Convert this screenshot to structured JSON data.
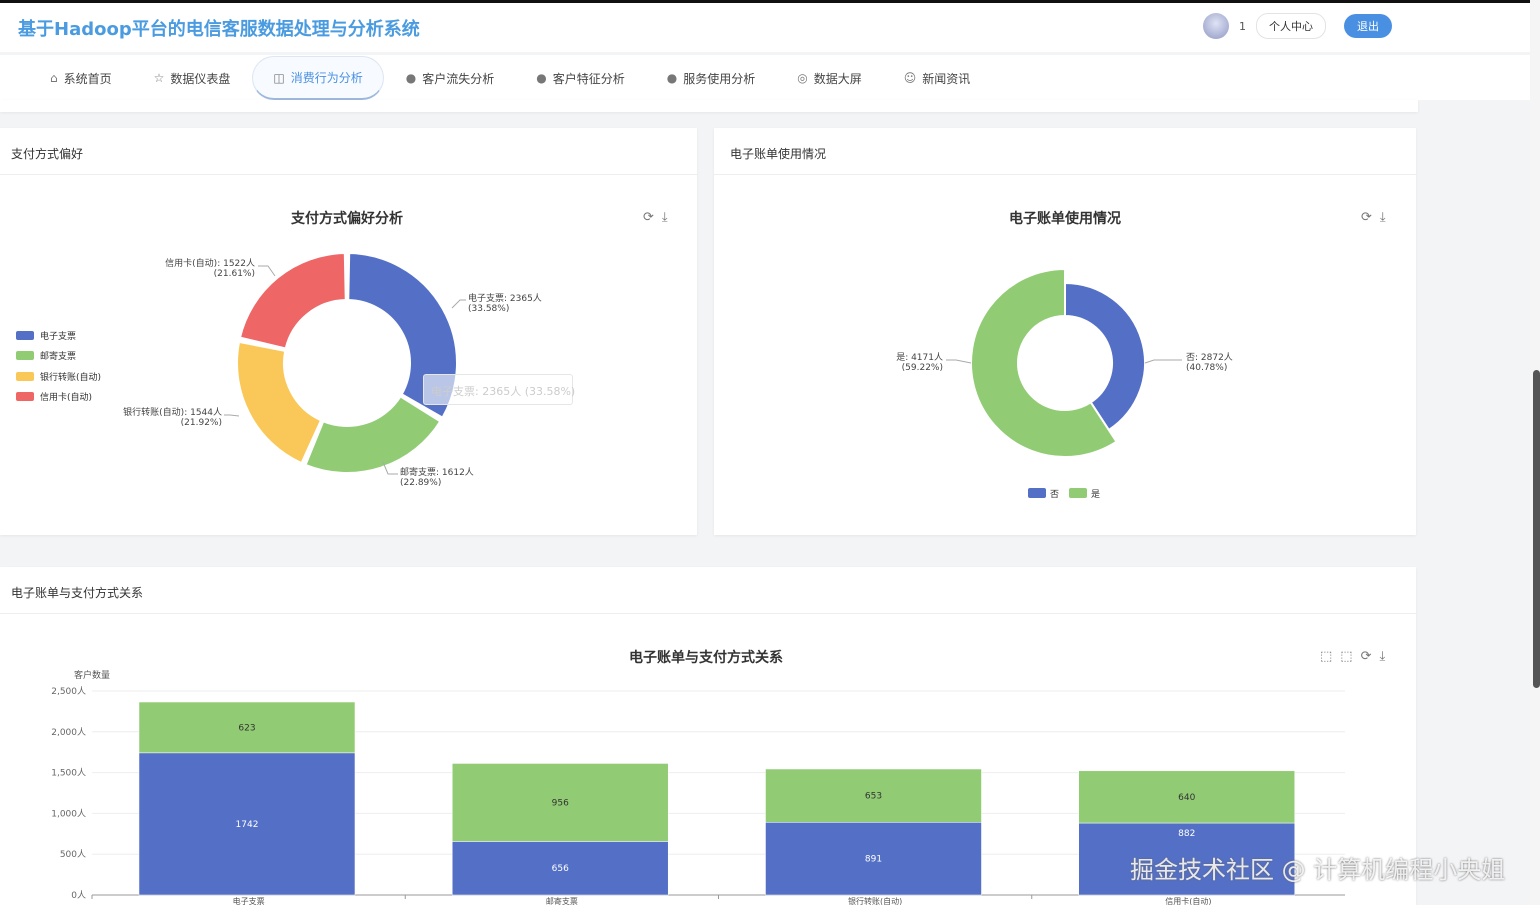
{
  "header": {
    "title": "基于Hadoop平台的电信客服数据处理与分析系统",
    "user": "1",
    "profile": "个人中心",
    "logout": "退出"
  },
  "nav": [
    {
      "label": "系统首页",
      "icon": "home-icon"
    },
    {
      "label": "数据仪表盘",
      "icon": "star-icon"
    },
    {
      "label": "消费行为分析",
      "icon": "bag-icon",
      "active": true
    },
    {
      "label": "客户流失分析",
      "icon": "info-icon"
    },
    {
      "label": "客户特征分析",
      "icon": "question-icon"
    },
    {
      "label": "服务使用分析",
      "icon": "info-icon"
    },
    {
      "label": "数据大屏",
      "icon": "target-icon"
    },
    {
      "label": "新闻资讯",
      "icon": "smile-icon"
    }
  ],
  "cards": {
    "payment": "支付方式偏好",
    "ebill": "电子账单使用情况",
    "relation": "电子账单与支付方式关系"
  },
  "tooltip": "电子支票: 2365人 (33.58%)",
  "watermark": "掘金技术社区 @ 计算机编程小央姐",
  "colors": {
    "blue": "#5470c6",
    "green": "#91cc75",
    "yellow": "#fac858",
    "red": "#ee6666",
    "accent": "#4a90e2"
  },
  "chart_data": [
    {
      "type": "pie",
      "title": "支付方式偏好分析",
      "legend_placement": "left",
      "series": [
        {
          "name": "电子支票",
          "value": 2365,
          "label": "电子支票: 2365人",
          "pct": "(33.58%)"
        },
        {
          "name": "邮寄支票",
          "value": 1612,
          "label": "邮寄支票: 1612人",
          "pct": "(22.89%)"
        },
        {
          "name": "银行转账(自动)",
          "value": 1544,
          "label": "银行转账(自动): 1544人",
          "pct": "(21.92%)"
        },
        {
          "name": "信用卡(自动)",
          "value": 1522,
          "label": "信用卡(自动): 1522人",
          "pct": "(21.61%)"
        }
      ]
    },
    {
      "type": "pie",
      "title": "电子账单使用情况",
      "legend_placement": "bottom",
      "series": [
        {
          "name": "否",
          "value": 2872,
          "label": "否: 2872人",
          "pct": "(40.78%)"
        },
        {
          "name": "是",
          "value": 4171,
          "label": "是: 4171人",
          "pct": "(59.22%)"
        }
      ]
    },
    {
      "type": "bar",
      "stacked": true,
      "title": "电子账单与支付方式关系",
      "ylabel": "客户数量",
      "ylim": [
        0,
        2500
      ],
      "yticks": [
        "0人",
        "500人",
        "1,000人",
        "1,500人",
        "2,000人",
        "2,500人"
      ],
      "categories": [
        "电子支票",
        "邮寄支票",
        "银行转账(自动)",
        "信用卡(自动)"
      ],
      "series": [
        {
          "values": [
            1742,
            656,
            891,
            882
          ]
        },
        {
          "values": [
            623,
            956,
            653,
            640
          ]
        }
      ]
    }
  ]
}
